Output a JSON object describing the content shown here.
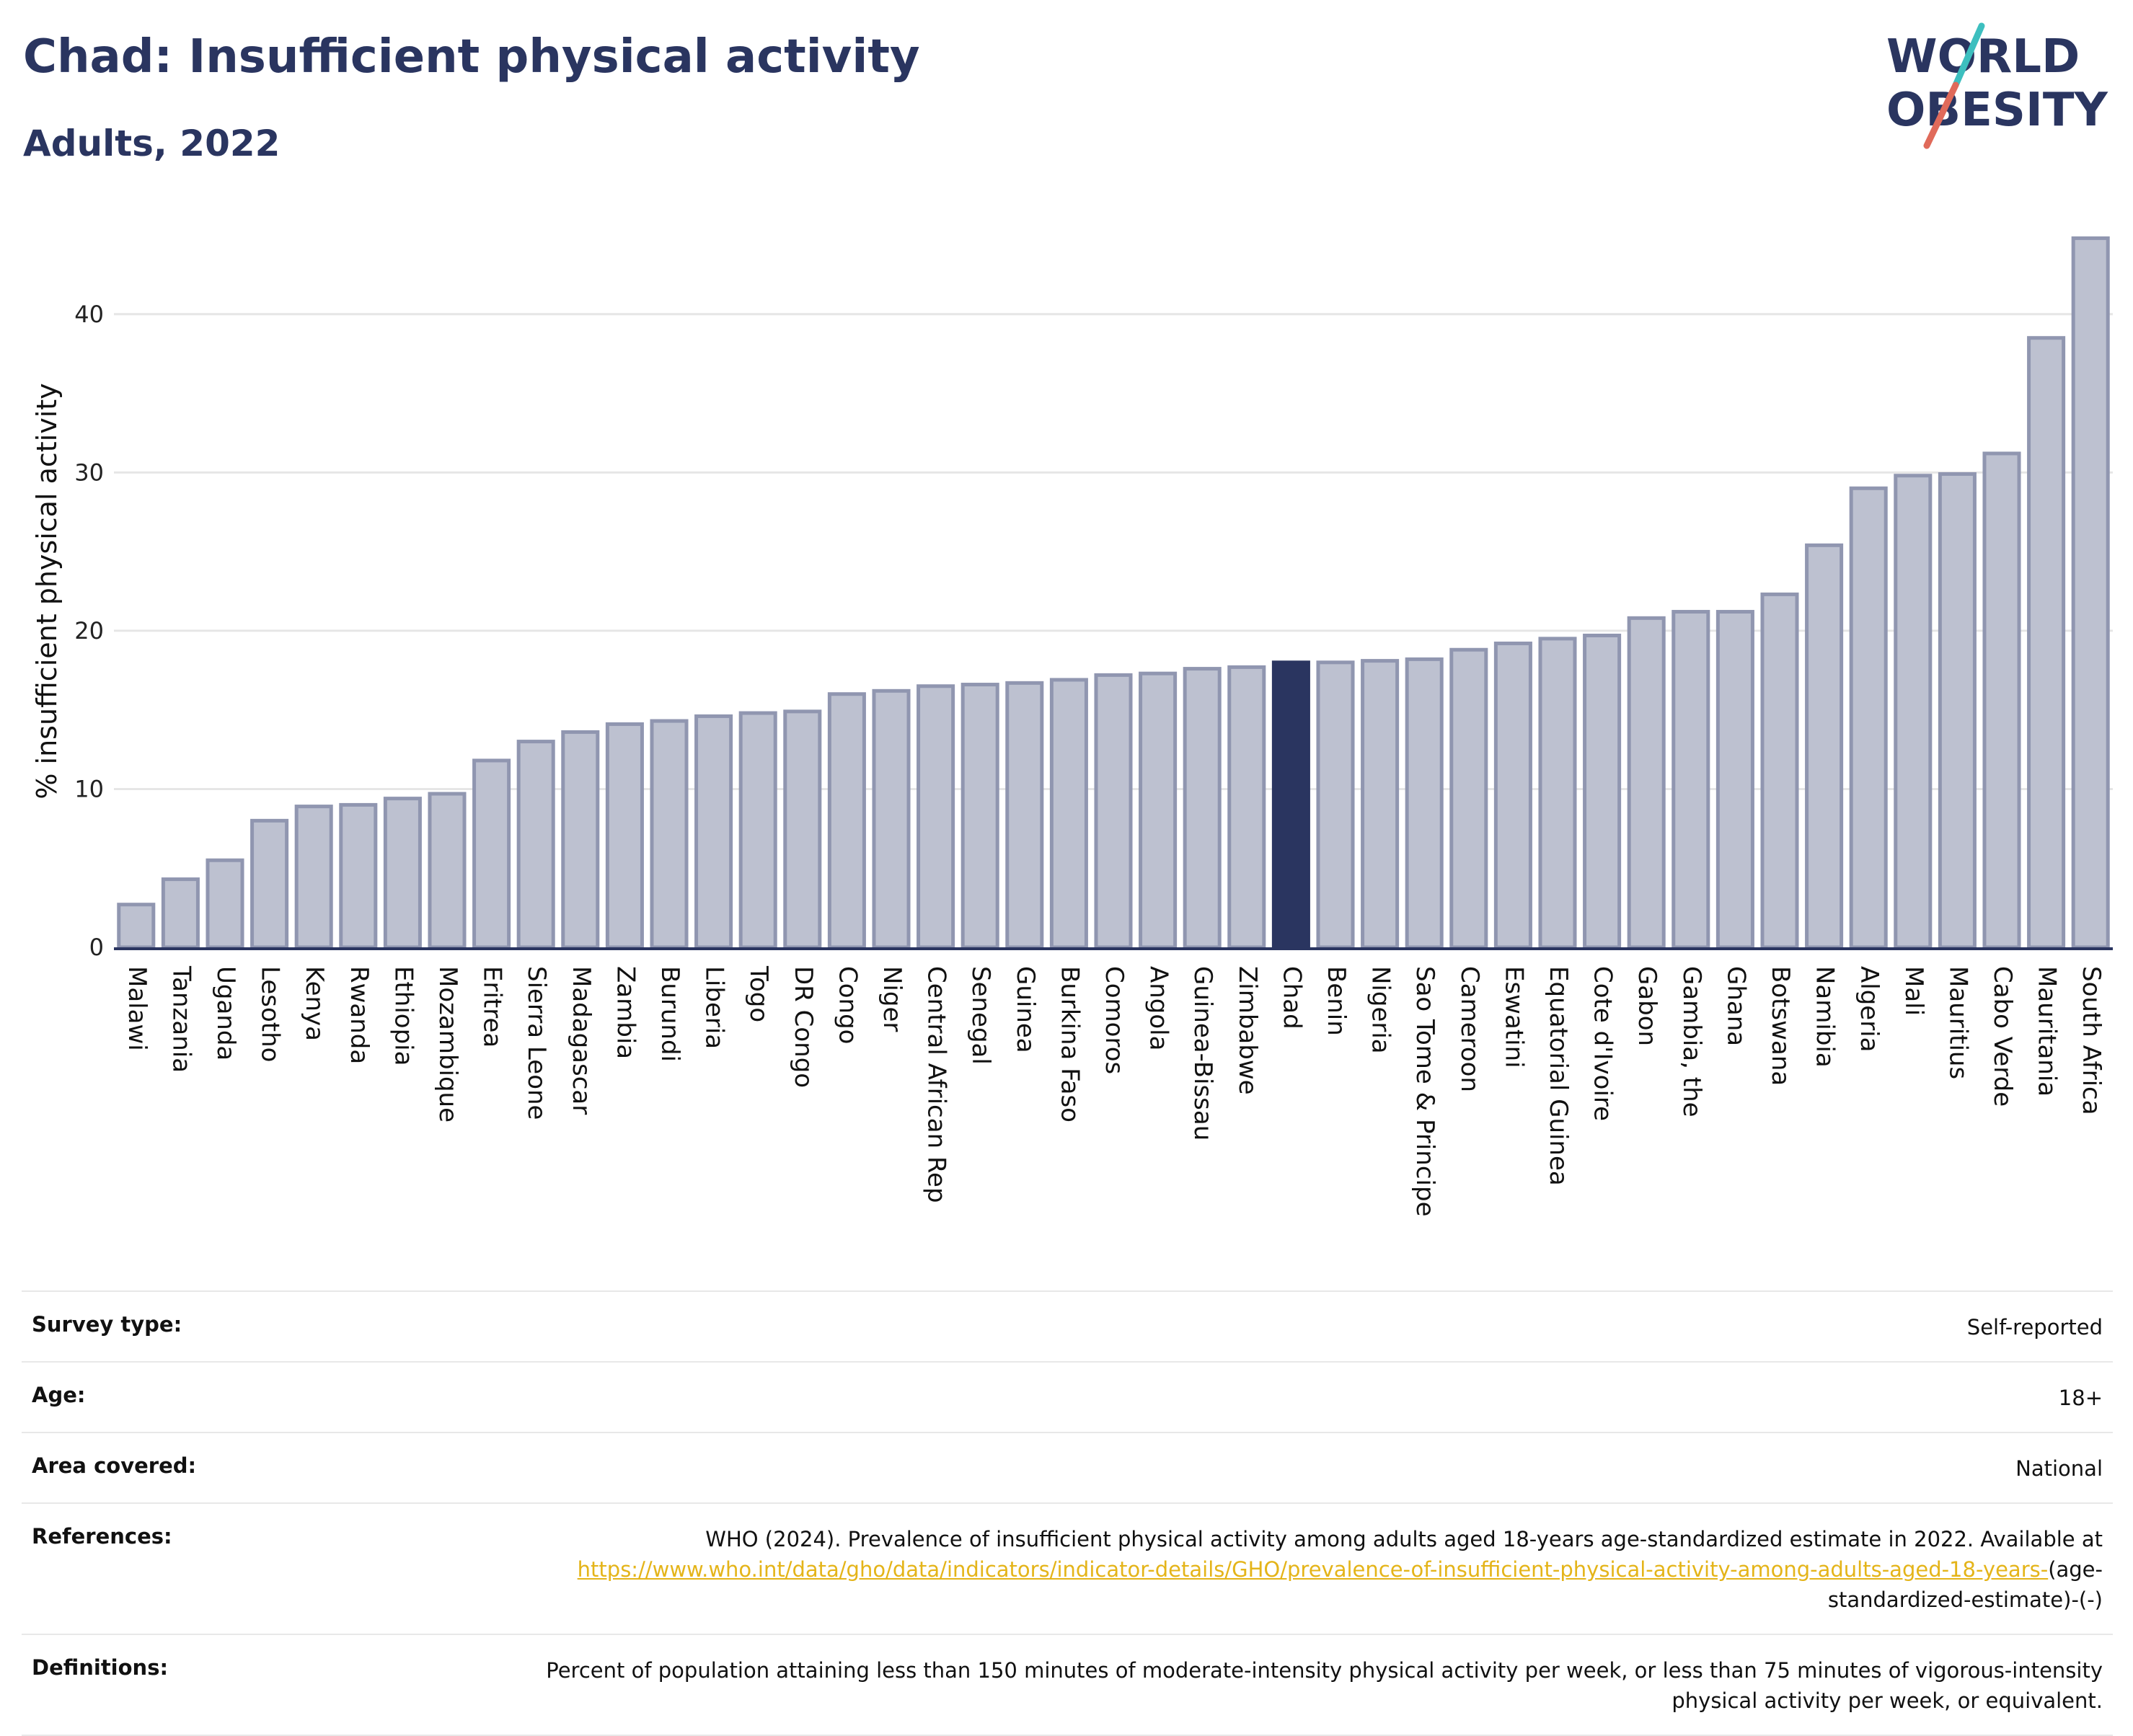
{
  "header": {
    "title": "Chad: Insufficient physical activity",
    "subtitle": "Adults, 2022"
  },
  "logo": {
    "line1": "WORLD",
    "line2": "OBESITY",
    "colors": [
      "#2a3560",
      "#e06a5a",
      "#3dbfbf"
    ]
  },
  "colors": {
    "bar": "#bdc1d0",
    "bar_border": "#9096b0",
    "highlight": "#2a3560",
    "grid": "#e6e6e6"
  },
  "chart_data": {
    "type": "bar",
    "ylabel": "% insufficient physical activity",
    "ylim": [
      0,
      45
    ],
    "yticks": [
      0,
      10,
      20,
      30,
      40
    ],
    "highlight": "Chad",
    "grid": true,
    "categories": [
      "Malawi",
      "Tanzania",
      "Uganda",
      "Lesotho",
      "Kenya",
      "Rwanda",
      "Ethiopia",
      "Mozambique",
      "Eritrea",
      "Sierra Leone",
      "Madagascar",
      "Zambia",
      "Burundi",
      "Liberia",
      "Togo",
      "DR Congo",
      "Congo",
      "Niger",
      "Central African Rep",
      "Senegal",
      "Guinea",
      "Burkina Faso",
      "Comoros",
      "Angola",
      "Guinea-Bissau",
      "Zimbabwe",
      "Chad",
      "Benin",
      "Nigeria",
      "Sao Tome & Principe",
      "Cameroon",
      "Eswatini",
      "Equatorial Guinea",
      "Cote d'Ivoire",
      "Gabon",
      "Gambia, the",
      "Ghana",
      "Botswana",
      "Namibia",
      "Algeria",
      "Mali",
      "Mauritius",
      "Cabo Verde",
      "Mauritania",
      "South Africa"
    ],
    "values": [
      2.7,
      4.3,
      5.5,
      8.0,
      8.9,
      9.0,
      9.4,
      9.7,
      11.8,
      13.0,
      13.6,
      14.1,
      14.3,
      14.6,
      14.8,
      14.9,
      16.0,
      16.2,
      16.5,
      16.6,
      16.7,
      16.9,
      17.2,
      17.3,
      17.6,
      17.7,
      18.0,
      18.0,
      18.1,
      18.2,
      18.8,
      19.2,
      19.5,
      19.7,
      20.8,
      21.2,
      21.2,
      22.3,
      25.4,
      29.0,
      29.8,
      29.9,
      31.2,
      38.5,
      44.8
    ]
  },
  "info": {
    "survey_type": {
      "label": "Survey type:",
      "value": "Self-reported"
    },
    "age": {
      "label": "Age:",
      "value": "18+"
    },
    "area": {
      "label": "Area covered:",
      "value": "National"
    },
    "references": {
      "label": "References:",
      "text": "WHO (2024). Prevalence of insufficient physical activity among adults aged 18-years age-standardized estimate in 2022. Available at",
      "link": "https://www.who.int/data/gho/data/indicators/indicator-details/GHO/prevalence-of-insufficient-physical-activity-among-adults-aged-18-years-",
      "tail": "(age-standardized-estimate)-(-)"
    },
    "definitions": {
      "label": "Definitions:",
      "value": "Percent of population attaining less than 150 minutes of moderate-intensity physical activity per week, or less than 75 minutes of vigorous-intensity physical activity per week, or equivalent."
    }
  }
}
